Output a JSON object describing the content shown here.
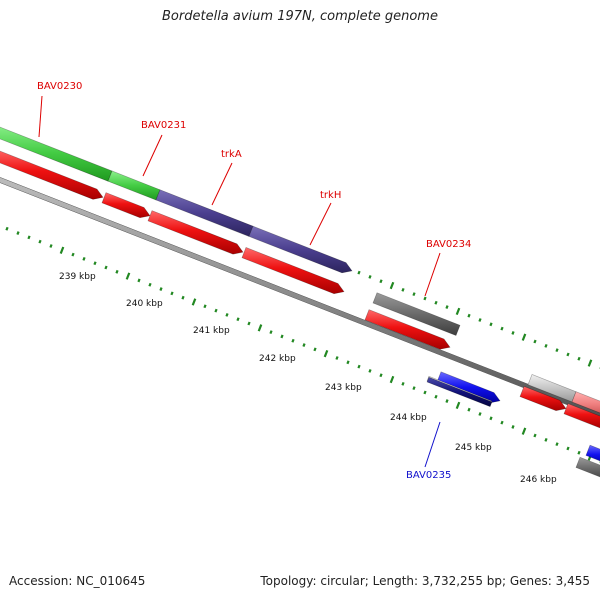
{
  "header": {
    "title": "Bordetella avium 197N, complete genome"
  },
  "footer": {
    "accession": "Accession: NC_010645",
    "summary": "Topology: circular; Length: 3,732,255 bp; Genes: 3,455"
  },
  "colors": {
    "backbone": "#8a8a8a",
    "cds": "#ee1111",
    "gc_ticks": "#228822",
    "label_red": "#dd0000",
    "label_blue": "#1111cc",
    "feature_green": "#44cc44",
    "feature_purple": "#4b3f8f",
    "feature_dark_gray": "#6a6a6a",
    "feature_blue": "#1111ee",
    "feature_navy": "#12127a",
    "feature_light_gray": "#c6c6c6",
    "feature_pink": "#f08080"
  },
  "ruler": {
    "ticks": [
      {
        "label": "239 kbp"
      },
      {
        "label": "240 kbp"
      },
      {
        "label": "241 kbp"
      },
      {
        "label": "242 kbp"
      },
      {
        "label": "243 kbp"
      },
      {
        "label": "244 kbp"
      },
      {
        "label": "245 kbp"
      },
      {
        "label": "246 kbp"
      }
    ]
  },
  "gene_labels": [
    {
      "name": "BAV0230",
      "color_key": "label_red"
    },
    {
      "name": "BAV0231",
      "color_key": "label_red"
    },
    {
      "name": "trkA",
      "color_key": "label_red"
    },
    {
      "name": "trkH",
      "color_key": "label_red"
    },
    {
      "name": "BAV0234",
      "color_key": "label_red"
    },
    {
      "name": "BAV0235",
      "color_key": "label_blue"
    }
  ]
}
